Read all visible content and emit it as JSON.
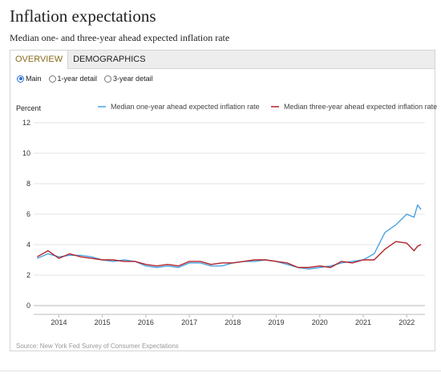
{
  "header": {
    "title": "Inflation expectations",
    "subtitle": "Median one- and three-year ahead expected inflation rate"
  },
  "tabs": [
    {
      "label": "OVERVIEW",
      "active": true
    },
    {
      "label": "DEMOGRAPHICS",
      "active": false
    }
  ],
  "radios": [
    {
      "label": "Main",
      "selected": true
    },
    {
      "label": "1-year detail",
      "selected": false
    },
    {
      "label": "3-year detail",
      "selected": false
    }
  ],
  "source": "Source: New York Fed Survey of Consumer Expectations",
  "colors": {
    "one_year": "#4aa3df",
    "three_year": "#b3222b"
  },
  "chart_data": {
    "type": "line",
    "ylabel": "Percent",
    "ylim": [
      0,
      12
    ],
    "yticks": [
      0,
      2,
      4,
      6,
      8,
      10,
      12
    ],
    "xlim": [
      2013.42,
      2022.42
    ],
    "xticks": [
      "2014",
      "2015",
      "2016",
      "2017",
      "2018",
      "2019",
      "2020",
      "2021",
      "2022"
    ],
    "grid": "horizontal",
    "legend": "top",
    "x": [
      2013.5,
      2013.75,
      2014.0,
      2014.25,
      2014.5,
      2014.75,
      2015.0,
      2015.25,
      2015.5,
      2015.75,
      2016.0,
      2016.25,
      2016.5,
      2016.75,
      2017.0,
      2017.25,
      2017.5,
      2017.75,
      2018.0,
      2018.25,
      2018.5,
      2018.75,
      2019.0,
      2019.25,
      2019.5,
      2019.75,
      2020.0,
      2020.25,
      2020.5,
      2020.75,
      2021.0,
      2021.25,
      2021.5,
      2021.75,
      2022.0,
      2022.17,
      2022.25,
      2022.33
    ],
    "series": [
      {
        "name": "Median one-year ahead expected inflation rate",
        "values": [
          3.1,
          3.4,
          3.2,
          3.3,
          3.3,
          3.2,
          3.0,
          2.9,
          3.0,
          2.9,
          2.6,
          2.5,
          2.6,
          2.5,
          2.8,
          2.8,
          2.6,
          2.6,
          2.8,
          2.9,
          2.9,
          3.0,
          2.9,
          2.7,
          2.5,
          2.4,
          2.5,
          2.6,
          2.8,
          2.9,
          3.0,
          3.4,
          4.8,
          5.3,
          6.0,
          5.8,
          6.6,
          6.3
        ]
      },
      {
        "name": "Median three-year ahead expected inflation rate",
        "values": [
          3.2,
          3.6,
          3.1,
          3.4,
          3.2,
          3.1,
          3.0,
          3.0,
          2.9,
          2.9,
          2.7,
          2.6,
          2.7,
          2.6,
          2.9,
          2.9,
          2.7,
          2.8,
          2.8,
          2.9,
          3.0,
          3.0,
          2.9,
          2.8,
          2.5,
          2.5,
          2.6,
          2.5,
          2.9,
          2.8,
          3.0,
          3.0,
          3.7,
          4.2,
          4.1,
          3.6,
          3.9,
          4.0
        ]
      }
    ]
  }
}
